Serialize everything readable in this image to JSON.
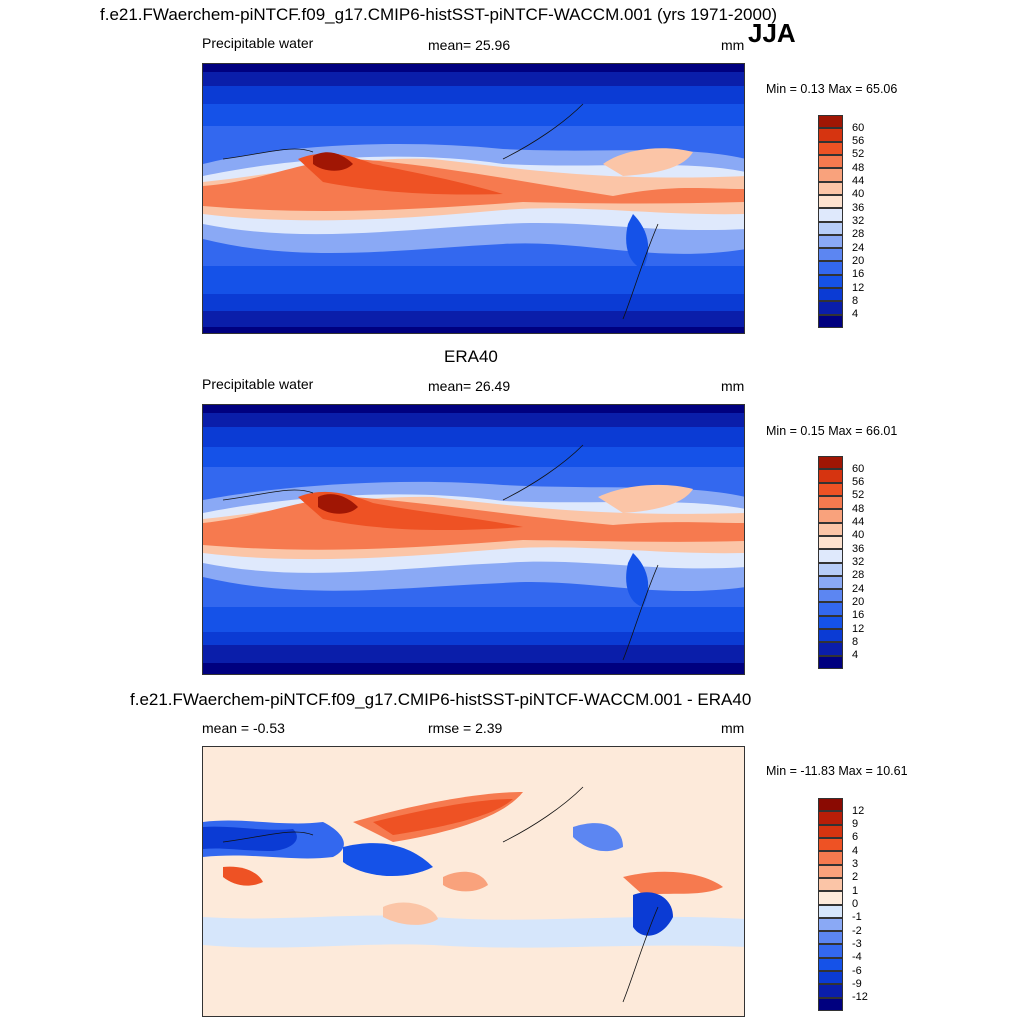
{
  "header": {
    "title": "f.e21.FWaerchem-piNTCF.f09_g17.CMIP6-histSST-piNTCF-WACCM.001 (yrs 1971-2000)",
    "season": "JJA"
  },
  "panels": [
    {
      "id": "model",
      "title": "",
      "left_label": "Precipitable water",
      "center_label": "mean=  25.96",
      "units": "mm",
      "minmax": "Min =   0.13 Max =  65.06"
    },
    {
      "id": "obs",
      "title": "ERA40",
      "left_label": "Precipitable water",
      "center_label": "mean=  26.49",
      "units": "mm",
      "minmax": "Min =   0.15 Max =  66.01"
    },
    {
      "id": "diff",
      "title": "f.e21.FWaerchem-piNTCF.f09_g17.CMIP6-histSST-piNTCF-WACCM.001 - ERA40",
      "left_label": "mean =  -0.53",
      "center_label": "rmse =   2.39",
      "units": "mm",
      "minmax": "Min = -11.83 Max =  10.61"
    }
  ],
  "colorbars": {
    "abs": {
      "ticks": [
        "4",
        "8",
        "12",
        "16",
        "20",
        "24",
        "28",
        "32",
        "36",
        "40",
        "44",
        "48",
        "52",
        "56",
        "60"
      ],
      "colors": [
        "#00007f",
        "#0a1eaa",
        "#0b3bd4",
        "#1552e8",
        "#3368ef",
        "#5c86f2",
        "#8aa9f5",
        "#b7cdf8",
        "#dfe9fc",
        "#fde2cf",
        "#fbc5a7",
        "#f9a27c",
        "#f67a4f",
        "#ee5224",
        "#d63410",
        "#a01604"
      ]
    },
    "diff": {
      "ticks": [
        "-12",
        "-9",
        "-6",
        "-4",
        "-3",
        "-2",
        "-1",
        "0",
        "1",
        "2",
        "3",
        "4",
        "6",
        "9",
        "12"
      ],
      "colors": [
        "#00007f",
        "#0a1eaa",
        "#0b3bd4",
        "#1552e8",
        "#3368ef",
        "#5c86f2",
        "#8aa9f5",
        "#d6e6fb",
        "#fdeada",
        "#fbc5a7",
        "#f9a27c",
        "#f67a4f",
        "#ee5224",
        "#d63410",
        "#b81e08",
        "#8a0a02"
      ]
    }
  },
  "chart_data": [
    {
      "type": "heatmap",
      "title": "",
      "subtitle": "Precipitable water",
      "units": "mm",
      "mean": 25.96,
      "min": 0.13,
      "max": 65.06,
      "projection": "cylindrical-equidistant",
      "lon_range": [
        30,
        390
      ],
      "lat_range": [
        -90,
        90
      ],
      "colorbar_levels": [
        4,
        8,
        12,
        16,
        20,
        24,
        28,
        32,
        36,
        40,
        44,
        48,
        52,
        56,
        60
      ]
    },
    {
      "type": "heatmap",
      "title": "ERA40",
      "subtitle": "Precipitable water",
      "units": "mm",
      "mean": 26.49,
      "min": 0.15,
      "max": 66.01,
      "projection": "cylindrical-equidistant",
      "lon_range": [
        30,
        390
      ],
      "lat_range": [
        -90,
        90
      ],
      "colorbar_levels": [
        4,
        8,
        12,
        16,
        20,
        24,
        28,
        32,
        36,
        40,
        44,
        48,
        52,
        56,
        60
      ]
    },
    {
      "type": "heatmap",
      "title": "f.e21.FWaerchem-piNTCF.f09_g17.CMIP6-histSST-piNTCF-WACCM.001 - ERA40",
      "units": "mm",
      "mean": -0.53,
      "rmse": 2.39,
      "min": -11.83,
      "max": 10.61,
      "projection": "cylindrical-equidistant",
      "lon_range": [
        30,
        390
      ],
      "lat_range": [
        -90,
        90
      ],
      "colorbar_levels": [
        -12,
        -9,
        -6,
        -4,
        -3,
        -2,
        -1,
        0,
        1,
        2,
        3,
        4,
        6,
        9,
        12
      ]
    }
  ]
}
